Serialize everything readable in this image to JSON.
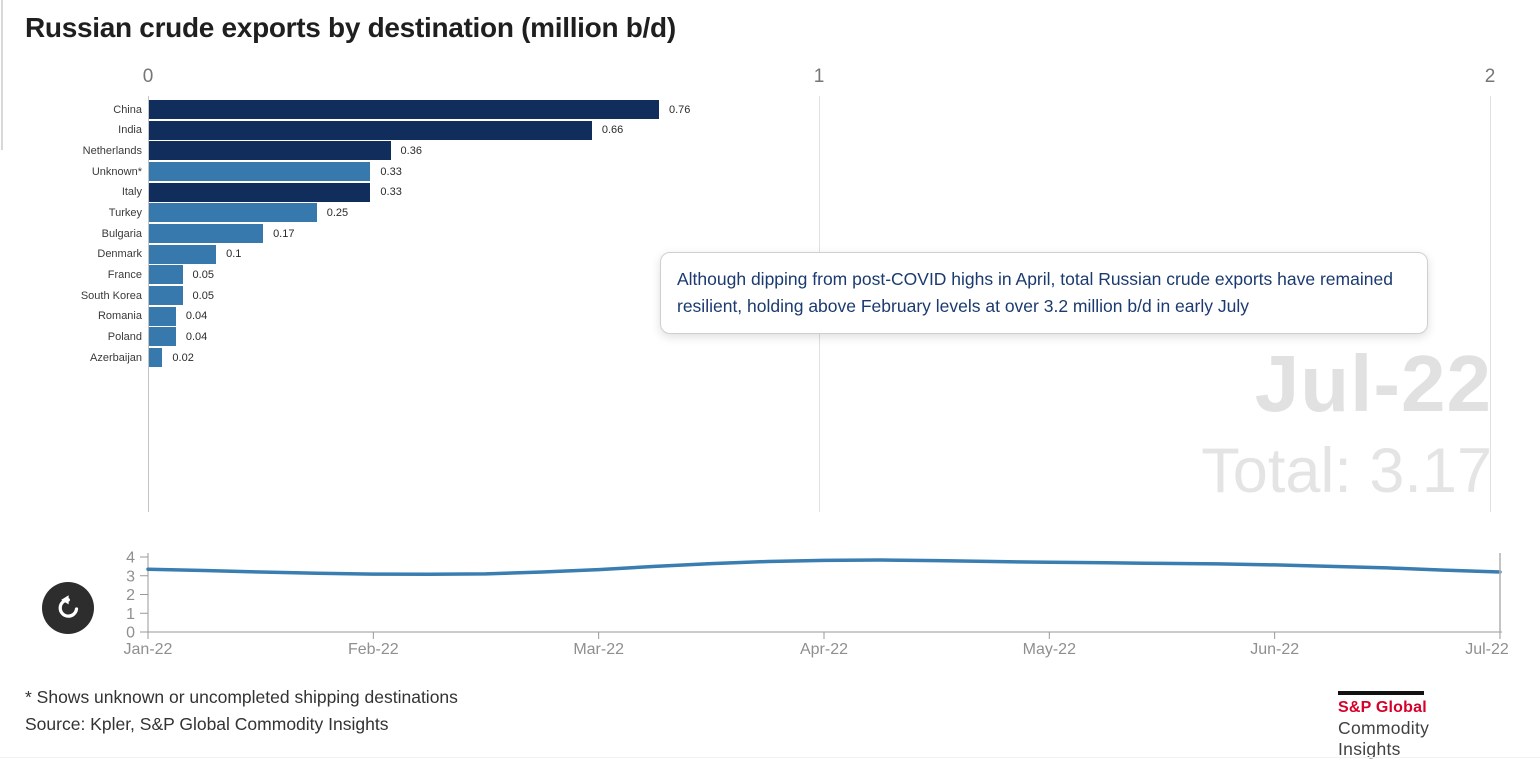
{
  "title": "Russian crude exports by destination (million b/d)",
  "annotation": {
    "text": "Although dipping from post-COVID highs in April, total Russian crude exports have remained resilient, holding above February levels at over 3.2 million b/d in early July"
  },
  "watermark": {
    "period": "Jul-22",
    "total_label": "Total: 3.17"
  },
  "colors": {
    "dark_bar": "#112d5c",
    "light_bar": "#3779ad",
    "line": "#3a7db0",
    "grid": "#e0e0e0",
    "axis_line": "#c4c4c4",
    "mini_axis": "#999999",
    "playhead": "#b0b0b0",
    "accent_red": "#d6002a",
    "watermark_gray": "#e1e1e1"
  },
  "chart_data": [
    {
      "type": "bar",
      "orientation": "horizontal",
      "title": "Russian crude exports by destination (million b/d)",
      "categories": [
        "China",
        "India",
        "Netherlands",
        "Unknown*",
        "Italy",
        "Turkey",
        "Bulgaria",
        "Denmark",
        "France",
        "South Korea",
        "Romania",
        "Poland",
        "Azerbaijan"
      ],
      "values": [
        0.76,
        0.66,
        0.36,
        0.33,
        0.33,
        0.25,
        0.17,
        0.1,
        0.05,
        0.05,
        0.04,
        0.04,
        0.02
      ],
      "value_labels": [
        "0.76",
        "0.66",
        "0.36",
        "0.33",
        "0.33",
        "0.25",
        "0.17",
        "0.1",
        "0.05",
        "0.05",
        "0.04",
        "0.04",
        "0.02"
      ],
      "bar_palette": [
        "dark",
        "dark",
        "dark",
        "light",
        "dark",
        "light",
        "light",
        "light",
        "light",
        "light",
        "light",
        "light",
        "light"
      ],
      "xlim": [
        0,
        2
      ],
      "xticks": [
        0,
        1,
        2
      ],
      "grid": true
    },
    {
      "type": "line",
      "title": "Total Russian crude exports over time (million b/d)",
      "x_tick_labels": [
        "Jan-22",
        "Feb-22",
        "Mar-22",
        "Apr-22",
        "May-22",
        "Jun-22",
        "Jul-22"
      ],
      "x_months": [
        0,
        0.25,
        0.5,
        0.75,
        1,
        1.25,
        1.5,
        1.75,
        2,
        2.25,
        2.5,
        2.75,
        3,
        3.25,
        3.5,
        3.75,
        4,
        4.25,
        4.5,
        4.75,
        5,
        5.25,
        5.5,
        5.75,
        6
      ],
      "values": [
        3.35,
        3.28,
        3.2,
        3.13,
        3.09,
        3.08,
        3.1,
        3.2,
        3.33,
        3.5,
        3.65,
        3.76,
        3.82,
        3.84,
        3.81,
        3.76,
        3.72,
        3.69,
        3.66,
        3.63,
        3.58,
        3.5,
        3.42,
        3.3,
        3.2
      ],
      "ylim": [
        0,
        4
      ],
      "yticks": [
        0,
        1,
        2,
        3,
        4
      ],
      "current_period": "Jul-22",
      "current_total": 3.17,
      "legend": "none"
    }
  ],
  "controls": {
    "replay_icon": "replay-counterclockwise-arrow"
  },
  "footer": {
    "footnote": "* Shows unknown or uncompleted shipping destinations",
    "source": "Source: Kpler, S&P Global Commodity Insights"
  },
  "logo": {
    "brand": "S&P Global",
    "division": "Commodity Insights"
  }
}
